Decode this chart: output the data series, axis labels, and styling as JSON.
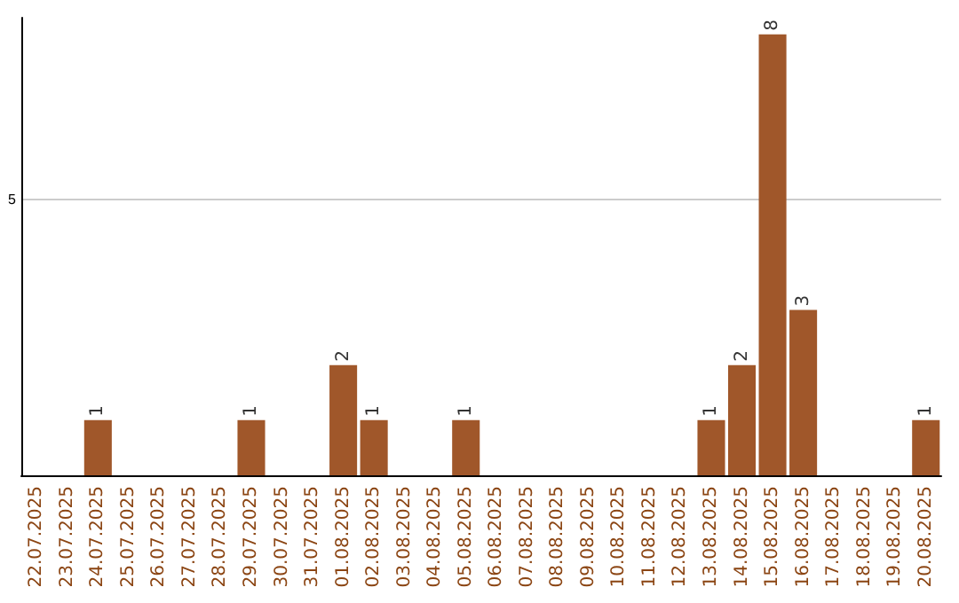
{
  "chart_data": {
    "type": "bar",
    "categories": [
      "22.07.2025",
      "23.07.2025",
      "24.07.2025",
      "25.07.2025",
      "26.07.2025",
      "27.07.2025",
      "28.07.2025",
      "29.07.2025",
      "30.07.2025",
      "31.07.2025",
      "01.08.2025",
      "02.08.2025",
      "03.08.2025",
      "04.08.2025",
      "05.08.2025",
      "06.08.2025",
      "07.08.2025",
      "08.08.2025",
      "09.08.2025",
      "10.08.2025",
      "11.08.2025",
      "12.08.2025",
      "13.08.2025",
      "14.08.2025",
      "15.08.2025",
      "16.08.2025",
      "17.08.2025",
      "18.08.2025",
      "19.08.2025",
      "20.08.2025"
    ],
    "values": [
      0,
      0,
      1,
      0,
      0,
      0,
      0,
      1,
      0,
      0,
      2,
      1,
      0,
      0,
      1,
      0,
      0,
      0,
      0,
      0,
      0,
      0,
      1,
      2,
      8,
      3,
      0,
      0,
      0,
      1
    ],
    "value_labels": [
      null,
      null,
      "1",
      null,
      null,
      null,
      null,
      "1",
      null,
      null,
      "2",
      "1",
      null,
      null,
      "1",
      null,
      null,
      null,
      null,
      null,
      null,
      null,
      "1",
      "2",
      "8",
      "3",
      null,
      null,
      null,
      "1"
    ],
    "color": "#a0572a",
    "ylim": [
      0,
      8.3
    ],
    "yticks": [
      5
    ],
    "grid": "y"
  }
}
